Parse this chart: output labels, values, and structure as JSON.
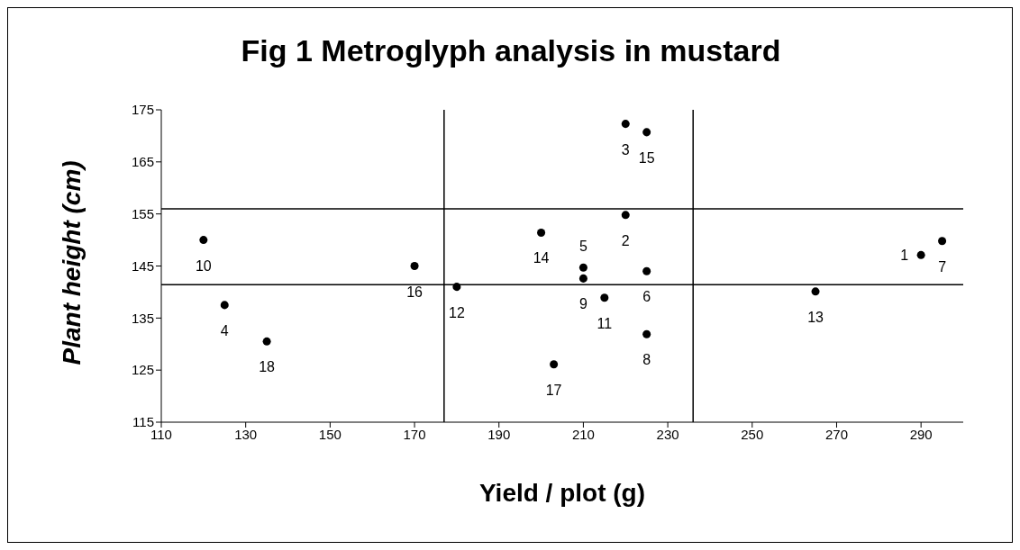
{
  "chart_data": {
    "type": "scatter",
    "title": "Fig 1 Metroglyph analysis in mustard",
    "xlabel": "Yield / plot (g)",
    "ylabel": "Plant height (cm)",
    "x": [
      120,
      125,
      135,
      170,
      180,
      200,
      220,
      225,
      220,
      210,
      210,
      225,
      215,
      225,
      203,
      265,
      290,
      295
    ],
    "series": [
      {
        "color": "#000000",
        "values": [
          150,
          137.5,
          130.5,
          145,
          141,
          151.4,
          172.3,
          170.7,
          154.8,
          144.7,
          142.6,
          144,
          138.9,
          131.9,
          126.1,
          140.1,
          147.1,
          149.8
        ]
      }
    ],
    "annotations": [
      {
        "text": "10",
        "x": 120,
        "y": 150
      },
      {
        "text": "4",
        "x": 125,
        "y": 137.5
      },
      {
        "text": "18",
        "x": 135,
        "y": 130.5
      },
      {
        "text": "16",
        "x": 170,
        "y": 145
      },
      {
        "text": "12",
        "x": 180,
        "y": 141
      },
      {
        "text": "14",
        "x": 200,
        "y": 151.4
      },
      {
        "text": "3",
        "x": 220,
        "y": 172.3
      },
      {
        "text": "15",
        "x": 225,
        "y": 170.7
      },
      {
        "text": "2",
        "x": 220,
        "y": 154.8
      },
      {
        "text": "5",
        "x": 210,
        "y": 144.7
      },
      {
        "text": "9",
        "x": 210,
        "y": 142.6
      },
      {
        "text": "6",
        "x": 225,
        "y": 144
      },
      {
        "text": "11",
        "x": 215,
        "y": 138.9
      },
      {
        "text": "8",
        "x": 225,
        "y": 131.9
      },
      {
        "text": "17",
        "x": 203,
        "y": 126.1
      },
      {
        "text": "13",
        "x": 265,
        "y": 140.1
      },
      {
        "text": "1",
        "x": 290,
        "y": 147.1
      },
      {
        "text": "7",
        "x": 295,
        "y": 149.8
      }
    ],
    "xlim": [
      110,
      300
    ],
    "xticks": [
      110,
      130,
      150,
      170,
      190,
      210,
      230,
      250,
      270,
      290
    ],
    "ylim": [
      115,
      175
    ],
    "yticks": [
      115,
      125,
      135,
      145,
      155,
      165,
      175
    ],
    "ref_lines": [
      {
        "axis": "x",
        "value": 177,
        "color": "#000000"
      },
      {
        "axis": "x",
        "value": 236,
        "color": "#000000"
      },
      {
        "axis": "y",
        "value": 141.4,
        "color": "#000000"
      },
      {
        "axis": "y",
        "value": 156,
        "color": "#000000"
      }
    ],
    "marker": "circle",
    "grid": false,
    "legend": false
  }
}
